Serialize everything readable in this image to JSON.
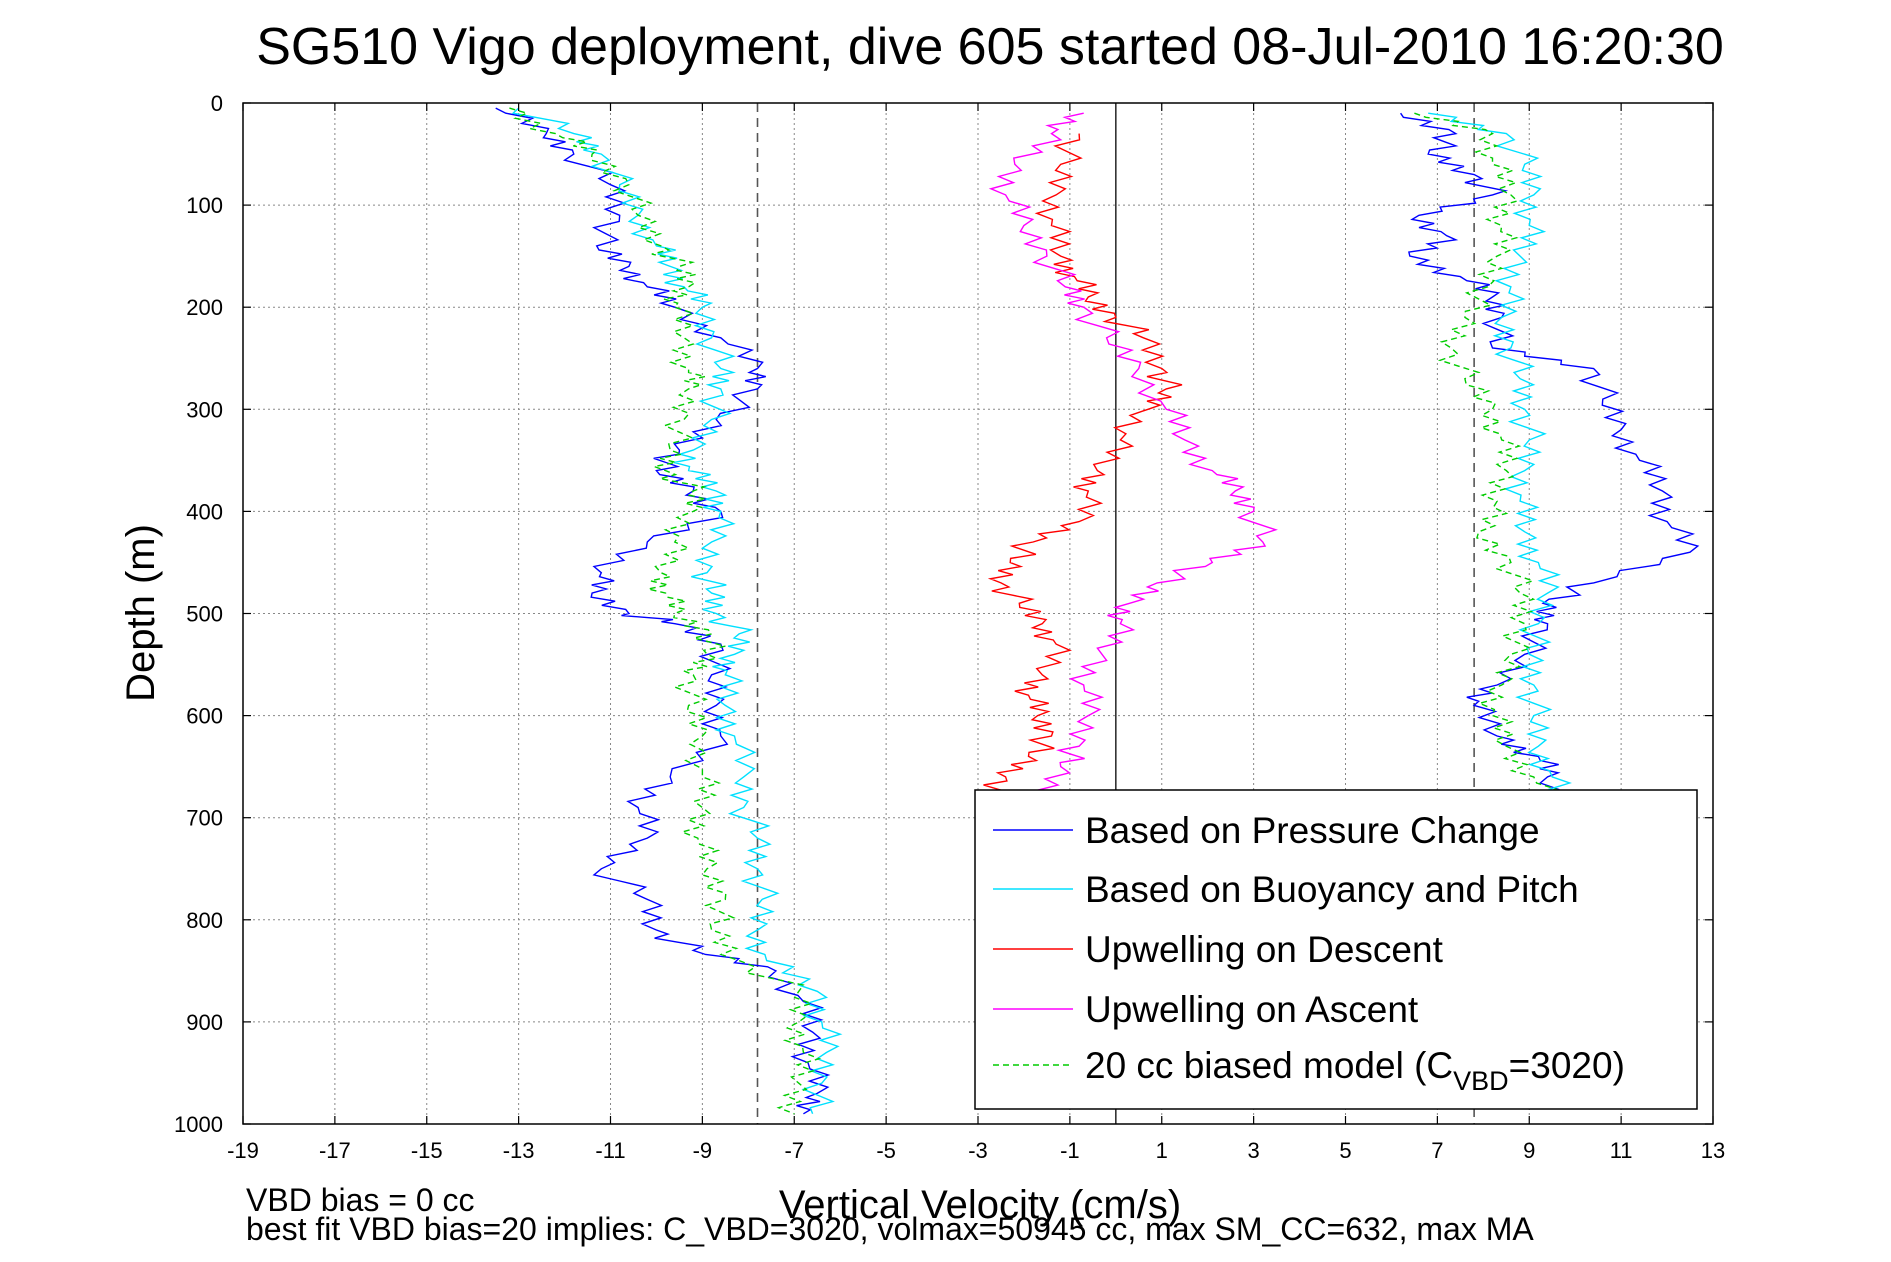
{
  "chart_data": {
    "type": "line",
    "title": "SG510 Vigo deployment, dive 605 started 08-Jul-2010 16:20:30",
    "xlabel": "Vertical Velocity (cm/s)",
    "ylabel": "Depth (m)",
    "xlim": [
      -19,
      13
    ],
    "ylim": [
      0,
      1000
    ],
    "y_reversed": true,
    "grid": true,
    "legend_position": "lower-right",
    "xticks": [
      "-19",
      "-17",
      "-15",
      "-13",
      "-11",
      "-9",
      "-7",
      "-5",
      "-3",
      "-1",
      "1",
      "3",
      "5",
      "7",
      "9",
      "11",
      "13"
    ],
    "yticks": [
      "0",
      "100",
      "200",
      "300",
      "400",
      "500",
      "600",
      "700",
      "800",
      "900",
      "1000"
    ],
    "reference_lines": [
      {
        "kind": "dashed",
        "color": "#555555",
        "x": -7.8
      },
      {
        "kind": "solid",
        "color": "#333333",
        "x": 0
      },
      {
        "kind": "dashed",
        "color": "#555555",
        "x": 7.8
      }
    ],
    "series": [
      {
        "name": "Based on Pressure Change",
        "color": "#0000ff",
        "dash": "",
        "x_by_depth": [
          [
            -13.5,
            5
          ],
          [
            -12.4,
            30
          ],
          [
            -11.8,
            50
          ],
          [
            -11,
            80
          ],
          [
            -10.8,
            110
          ],
          [
            -11.3,
            140
          ],
          [
            -10.6,
            160
          ],
          [
            -10.2,
            180
          ],
          [
            -9.6,
            200
          ],
          [
            -8.6,
            230
          ],
          [
            -7.8,
            260
          ],
          [
            -7.8,
            280
          ],
          [
            -8.7,
            310
          ],
          [
            -9.5,
            340
          ],
          [
            -10,
            360
          ],
          [
            -9.2,
            380
          ],
          [
            -8.6,
            400
          ],
          [
            -10.2,
            430
          ],
          [
            -11.2,
            460
          ],
          [
            -11.4,
            480
          ],
          [
            -10.6,
            500
          ],
          [
            -9.6,
            510
          ],
          [
            -8.6,
            530
          ],
          [
            -8.8,
            560
          ],
          [
            -8.7,
            590
          ],
          [
            -8.6,
            620
          ],
          [
            -9.7,
            660
          ],
          [
            -10.4,
            690
          ],
          [
            -10.2,
            720
          ],
          [
            -11.2,
            750
          ],
          [
            -10.2,
            780
          ],
          [
            -10,
            810
          ],
          [
            -9.2,
            830
          ],
          [
            -7.4,
            850
          ],
          [
            -6.8,
            880
          ],
          [
            -6.6,
            910
          ],
          [
            -6.7,
            940
          ],
          [
            -6.5,
            970
          ],
          [
            -6.8,
            990
          ]
        ]
      },
      {
        "name": "Based on Buoyancy and Pitch",
        "color": "#00e0ff",
        "dash": "",
        "x_by_depth": [
          [
            -13,
            5
          ],
          [
            -11.8,
            30
          ],
          [
            -11.2,
            50
          ],
          [
            -10.8,
            80
          ],
          [
            -10.4,
            110
          ],
          [
            -10,
            140
          ],
          [
            -9.7,
            160
          ],
          [
            -9.4,
            180
          ],
          [
            -9,
            200
          ],
          [
            -8.8,
            230
          ],
          [
            -8.6,
            260
          ],
          [
            -8.6,
            280
          ],
          [
            -8.8,
            310
          ],
          [
            -9.2,
            340
          ],
          [
            -9.3,
            360
          ],
          [
            -8.7,
            380
          ],
          [
            -8.6,
            400
          ],
          [
            -8.8,
            430
          ],
          [
            -8.9,
            460
          ],
          [
            -8.8,
            480
          ],
          [
            -8.7,
            500
          ],
          [
            -8.2,
            520
          ],
          [
            -8.3,
            540
          ],
          [
            -8.5,
            560
          ],
          [
            -8.5,
            590
          ],
          [
            -8.3,
            620
          ],
          [
            -8.1,
            660
          ],
          [
            -8.1,
            690
          ],
          [
            -7.8,
            720
          ],
          [
            -7.8,
            750
          ],
          [
            -7.7,
            780
          ],
          [
            -7.8,
            810
          ],
          [
            -7.6,
            840
          ],
          [
            -6.5,
            870
          ],
          [
            -6.4,
            900
          ],
          [
            -6.3,
            930
          ],
          [
            -6.4,
            960
          ],
          [
            -6.6,
            990
          ]
        ]
      },
      {
        "name": "Upwelling on Descent",
        "color": "#ff0000",
        "dash": "",
        "x_by_depth": [
          [
            -0.8,
            30
          ],
          [
            -1.2,
            60
          ],
          [
            -1.3,
            90
          ],
          [
            -1.4,
            120
          ],
          [
            -1.2,
            150
          ],
          [
            -0.9,
            170
          ],
          [
            -0.6,
            190
          ],
          [
            0,
            210
          ],
          [
            0.6,
            230
          ],
          [
            1,
            260
          ],
          [
            1.1,
            280
          ],
          [
            0.7,
            300
          ],
          [
            0.1,
            330
          ],
          [
            -0.4,
            360
          ],
          [
            -0.6,
            380
          ],
          [
            -0.8,
            410
          ],
          [
            -1.8,
            430
          ],
          [
            -2.3,
            450
          ],
          [
            -2.5,
            470
          ],
          [
            -2.1,
            490
          ],
          [
            -1.6,
            510
          ],
          [
            -1.3,
            530
          ],
          [
            -1.6,
            560
          ],
          [
            -1.9,
            580
          ],
          [
            -1.7,
            600
          ],
          [
            -1.4,
            620
          ],
          [
            -1.9,
            640
          ],
          [
            -2.4,
            660
          ],
          [
            -2.7,
            680
          ]
        ]
      },
      {
        "name": "Upwelling on Ascent",
        "color": "#ff00ff",
        "dash": "",
        "x_by_depth": [
          [
            -0.7,
            10
          ],
          [
            -1.4,
            30
          ],
          [
            -2.2,
            60
          ],
          [
            -2.4,
            90
          ],
          [
            -2,
            120
          ],
          [
            -1.5,
            150
          ],
          [
            -1.1,
            180
          ],
          [
            -0.7,
            200
          ],
          [
            -0.2,
            230
          ],
          [
            0.5,
            260
          ],
          [
            1.1,
            300
          ],
          [
            1.5,
            330
          ],
          [
            2.1,
            360
          ],
          [
            2.6,
            380
          ],
          [
            3,
            400
          ],
          [
            3.2,
            430
          ],
          [
            2.1,
            450
          ],
          [
            0.9,
            470
          ],
          [
            0.3,
            490
          ],
          [
            0.1,
            510
          ],
          [
            -0.3,
            540
          ],
          [
            -0.7,
            570
          ],
          [
            -0.6,
            600
          ],
          [
            -0.8,
            630
          ],
          [
            -1.2,
            650
          ],
          [
            -1.6,
            680
          ]
        ]
      },
      {
        "name": "20 cc biased model (C_VBD=3020)",
        "color": "#00cc00",
        "dash": "6,4",
        "x_by_depth": [
          [
            -13.2,
            5
          ],
          [
            -12.2,
            30
          ],
          [
            -11.4,
            50
          ],
          [
            -10.6,
            80
          ],
          [
            -10.4,
            110
          ],
          [
            -9.9,
            140
          ],
          [
            -9.5,
            160
          ],
          [
            -9.3,
            180
          ],
          [
            -9.6,
            200
          ],
          [
            -9.4,
            230
          ],
          [
            -9.3,
            260
          ],
          [
            -9.3,
            280
          ],
          [
            -9.4,
            310
          ],
          [
            -9.7,
            340
          ],
          [
            -9.8,
            360
          ],
          [
            -9.2,
            380
          ],
          [
            -9.2,
            400
          ],
          [
            -9.6,
            430
          ],
          [
            -9.9,
            460
          ],
          [
            -9.8,
            480
          ],
          [
            -9.6,
            500
          ],
          [
            -8.8,
            520
          ],
          [
            -8.9,
            540
          ],
          [
            -9.2,
            560
          ],
          [
            -9.3,
            590
          ],
          [
            -9,
            620
          ],
          [
            -9,
            660
          ],
          [
            -9,
            690
          ],
          [
            -9.1,
            720
          ],
          [
            -8.9,
            750
          ],
          [
            -8.5,
            780
          ],
          [
            -8.8,
            810
          ],
          [
            -8.2,
            840
          ],
          [
            -6.9,
            870
          ],
          [
            -6.9,
            900
          ],
          [
            -6.8,
            930
          ],
          [
            -6.9,
            960
          ],
          [
            -7,
            990
          ]
        ]
      },
      {
        "name": "Based on Pressure Change",
        "color": "#0000ff",
        "dash": "",
        "x_by_depth": [
          [
            6.2,
            10
          ],
          [
            7.4,
            30
          ],
          [
            6.8,
            50
          ],
          [
            7.8,
            70
          ],
          [
            8.2,
            90
          ],
          [
            6.6,
            110
          ],
          [
            7.2,
            130
          ],
          [
            6.4,
            150
          ],
          [
            7.5,
            170
          ],
          [
            8.2,
            190
          ],
          [
            8.4,
            210
          ],
          [
            8.2,
            240
          ],
          [
            10.4,
            260
          ],
          [
            10.6,
            290
          ],
          [
            11,
            320
          ],
          [
            11.4,
            350
          ],
          [
            11.9,
            380
          ],
          [
            12,
            410
          ],
          [
            12.5,
            440
          ],
          [
            10.4,
            470
          ],
          [
            9.3,
            490
          ],
          [
            9.4,
            510
          ],
          [
            8.9,
            540
          ],
          [
            8.3,
            570
          ],
          [
            7.8,
            590
          ],
          [
            8.3,
            620
          ],
          [
            9.2,
            640
          ],
          [
            9.4,
            660
          ],
          [
            9.5,
            690
          ]
        ]
      },
      {
        "name": "Based on Buoyancy and Pitch",
        "color": "#00e0ff",
        "dash": "",
        "x_by_depth": [
          [
            6.8,
            10
          ],
          [
            8.5,
            30
          ],
          [
            8.9,
            60
          ],
          [
            9.1,
            90
          ],
          [
            9,
            120
          ],
          [
            8.8,
            150
          ],
          [
            8.6,
            180
          ],
          [
            8.4,
            210
          ],
          [
            8.6,
            240
          ],
          [
            8.8,
            270
          ],
          [
            8.9,
            300
          ],
          [
            9,
            330
          ],
          [
            8.9,
            360
          ],
          [
            8.8,
            390
          ],
          [
            8.9,
            420
          ],
          [
            9.2,
            450
          ],
          [
            9.4,
            480
          ],
          [
            9.2,
            510
          ],
          [
            9,
            540
          ],
          [
            9.1,
            570
          ],
          [
            9.1,
            600
          ],
          [
            9.2,
            630
          ],
          [
            9.5,
            660
          ],
          [
            9.6,
            690
          ]
        ]
      },
      {
        "name": "20 cc biased model (C_VBD=3020)",
        "color": "#00cc00",
        "dash": "6,4",
        "x_by_depth": [
          [
            6.5,
            10
          ],
          [
            8.2,
            30
          ],
          [
            8.2,
            60
          ],
          [
            8.6,
            90
          ],
          [
            8.4,
            120
          ],
          [
            8.3,
            150
          ],
          [
            8.1,
            180
          ],
          [
            7.6,
            210
          ],
          [
            7.3,
            240
          ],
          [
            7.6,
            270
          ],
          [
            8.2,
            300
          ],
          [
            8.4,
            330
          ],
          [
            8.5,
            360
          ],
          [
            8.3,
            390
          ],
          [
            7.9,
            420
          ],
          [
            8.6,
            450
          ],
          [
            8.8,
            480
          ],
          [
            8.9,
            510
          ],
          [
            8.6,
            540
          ],
          [
            8.4,
            570
          ],
          [
            8.2,
            600
          ],
          [
            8.5,
            630
          ],
          [
            9.1,
            660
          ],
          [
            9.4,
            690
          ]
        ]
      }
    ]
  },
  "footer": {
    "line1": "VBD bias = 0 cc",
    "line2": "best fit VBD bias=20 implies: C_VBD=3020, volmax=50945 cc, max SM_CC=632, max MA"
  },
  "legend": {
    "entries": [
      {
        "label": "Based on Pressure Change",
        "color": "#0000ff",
        "dash": ""
      },
      {
        "label": "Based on Buoyancy and Pitch",
        "color": "#00e0ff",
        "dash": ""
      },
      {
        "label": "Upwelling on Descent",
        "color": "#ff0000",
        "dash": ""
      },
      {
        "label": "Upwelling on Ascent",
        "color": "#ff00ff",
        "dash": ""
      },
      {
        "label": "20 cc biased model (C",
        "label_sub": "VBD",
        "label_tail": "=3020)",
        "color": "#00cc00",
        "dash": "6,4"
      }
    ]
  }
}
